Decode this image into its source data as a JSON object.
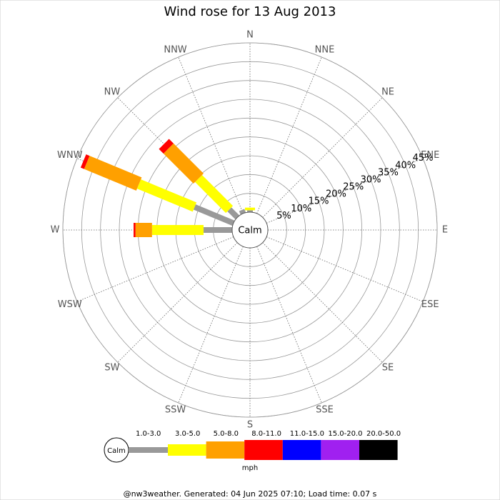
{
  "chart_data": {
    "type": "windrose",
    "title": "Wind rose for 13 Aug 2013",
    "calm_label": "Calm",
    "categories": [
      "N",
      "NNE",
      "NE",
      "ENE",
      "E",
      "ESE",
      "SE",
      "SSE",
      "S",
      "SSW",
      "SW",
      "WSW",
      "W",
      "WNW",
      "NW",
      "NNW"
    ],
    "rlim": [
      0,
      45
    ],
    "rticks": [
      {
        "value": 5,
        "label": "5%"
      },
      {
        "value": 10,
        "label": "10%"
      },
      {
        "value": 15,
        "label": "15%"
      },
      {
        "value": 20,
        "label": "20%"
      },
      {
        "value": 25,
        "label": "25%"
      },
      {
        "value": 30,
        "label": "30%"
      },
      {
        "value": 35,
        "label": "35%"
      },
      {
        "value": 40,
        "label": "40%"
      },
      {
        "value": 45,
        "label": "45%"
      }
    ],
    "series": [
      {
        "name": "1.0-3.0",
        "color": "#999999",
        "values": [
          0.5,
          0,
          0,
          0,
          0,
          0,
          0,
          0,
          0,
          0,
          0,
          0,
          7.6,
          11.2,
          3,
          1
        ]
      },
      {
        "name": "3.0-5.0",
        "color": "#ffff00",
        "values": [
          0.7,
          0,
          0,
          0,
          0,
          0,
          0,
          0,
          0,
          0,
          0,
          0,
          13.7,
          16,
          11.6,
          0
        ]
      },
      {
        "name": "5.0-8.0",
        "color": "#ffa000",
        "values": [
          0,
          0,
          0,
          0,
          0,
          0,
          0,
          0,
          0,
          0,
          0,
          0,
          4.4,
          15,
          11.3,
          0
        ]
      },
      {
        "name": "8.0-11.0",
        "color": "#ff0000",
        "values": [
          0,
          0,
          0,
          0,
          0,
          0,
          0,
          0,
          0,
          0,
          0,
          0,
          0.5,
          1,
          1.7,
          0
        ]
      },
      {
        "name": "11.0-15.0",
        "color": "#0000ff",
        "values": [
          0,
          0,
          0,
          0,
          0,
          0,
          0,
          0,
          0,
          0,
          0,
          0,
          0,
          0,
          0,
          0
        ]
      },
      {
        "name": "15.0-20.0",
        "color": "#a020f0",
        "values": [
          0,
          0,
          0,
          0,
          0,
          0,
          0,
          0,
          0,
          0,
          0,
          0,
          0,
          0,
          0,
          0
        ]
      },
      {
        "name": "20.0-50.0",
        "color": "#000000",
        "values": [
          0,
          0,
          0,
          0,
          0,
          0,
          0,
          0,
          0,
          0,
          0,
          0,
          0,
          0,
          0,
          0
        ]
      }
    ],
    "unit_label": "mph",
    "footer": "@nw3weather. Generated: 04 Jun 2025 07:10; Load time: 0.07 s"
  }
}
